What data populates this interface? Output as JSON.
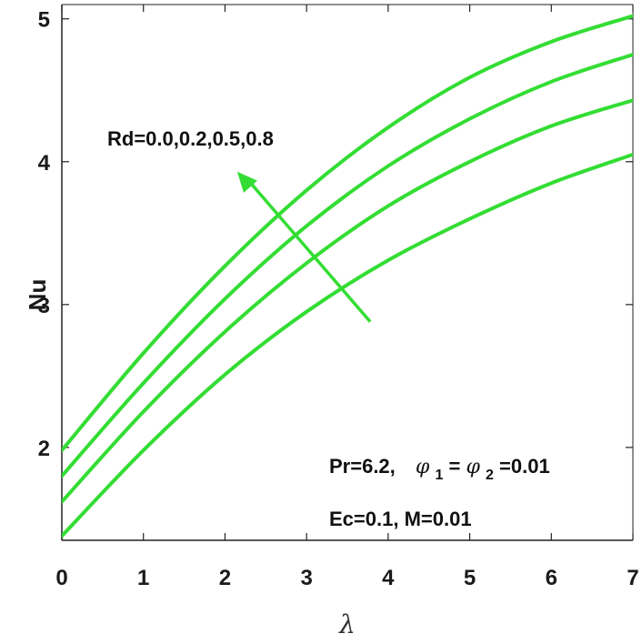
{
  "chart_data": {
    "type": "line",
    "xlabel": "λ",
    "ylabel": "Nu",
    "xlim": [
      0,
      7
    ],
    "ylim": [
      1.35,
      5.1
    ],
    "xticks": [
      "0",
      "1",
      "2",
      "3",
      "4",
      "5",
      "6",
      "7"
    ],
    "yticks": [
      "2",
      "3",
      "4",
      "5"
    ],
    "grid": false,
    "line_color": "#33dd33",
    "x": [
      0,
      1,
      2,
      3,
      4,
      5,
      6,
      7
    ],
    "series": [
      {
        "values": [
          1.38,
          1.98,
          2.51,
          2.95,
          3.31,
          3.6,
          3.85,
          4.05
        ]
      },
      {
        "values": [
          1.62,
          2.25,
          2.81,
          3.29,
          3.69,
          4.0,
          4.25,
          4.43
        ]
      },
      {
        "values": [
          1.8,
          2.45,
          3.04,
          3.55,
          3.97,
          4.3,
          4.56,
          4.75
        ]
      },
      {
        "values": [
          1.98,
          2.66,
          3.27,
          3.8,
          4.24,
          4.59,
          4.84,
          5.02
        ]
      }
    ],
    "annotations": {
      "rd_label": "Rd=0.0,0.2,0.5,0.8",
      "params_line1_pr": "Pr=6.2,",
      "params_line1_phi": "φ",
      "params_line1_sub1": "1",
      "params_line1_eq": "=",
      "params_line1_sub2": "2",
      "params_line1_val": "=0.01",
      "params_line2": "Ec=0.1, M=0.01"
    }
  }
}
